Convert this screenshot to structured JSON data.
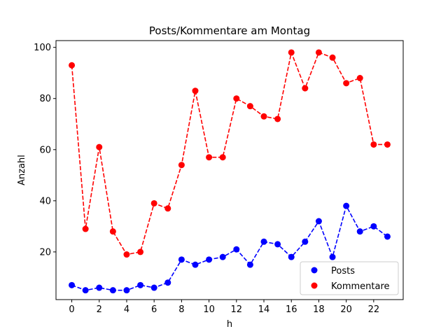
{
  "chart_data": {
    "type": "line",
    "title": "Posts/Kommentare am Montag",
    "xlabel": "h",
    "ylabel": "Anzahl",
    "x": [
      0,
      1,
      2,
      3,
      4,
      5,
      6,
      7,
      8,
      9,
      10,
      11,
      12,
      13,
      14,
      15,
      16,
      17,
      18,
      19,
      20,
      21,
      22,
      23
    ],
    "xlim": [
      -1.15,
      24.15
    ],
    "ylim": [
      1.35,
      102.65
    ],
    "xticks": [
      0,
      2,
      4,
      6,
      8,
      10,
      12,
      14,
      16,
      18,
      20,
      22
    ],
    "yticks": [
      20,
      40,
      60,
      80,
      100
    ],
    "grid": false,
    "legend_position": "lower right",
    "series": [
      {
        "name": "Posts",
        "color": "#0000ff",
        "linestyle": "dashed",
        "marker": "circle",
        "values": [
          7,
          5,
          6,
          5,
          5,
          7,
          6,
          8,
          17,
          15,
          17,
          18,
          21,
          15,
          24,
          23,
          18,
          24,
          32,
          18,
          38,
          28,
          30,
          26
        ]
      },
      {
        "name": "Kommentare",
        "color": "#ff0000",
        "linestyle": "dashed",
        "marker": "circle",
        "values": [
          93,
          29,
          61,
          28,
          19,
          20,
          39,
          37,
          54,
          83,
          57,
          57,
          80,
          77,
          73,
          72,
          98,
          84,
          98,
          96,
          86,
          88,
          62,
          62
        ]
      }
    ]
  }
}
